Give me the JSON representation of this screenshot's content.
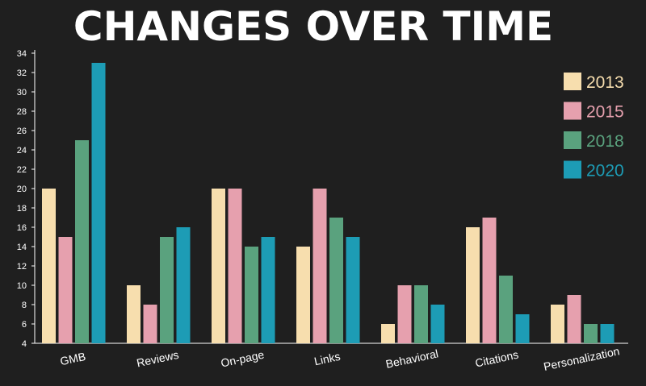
{
  "chart_data": {
    "type": "bar",
    "title": "CHANGES OVER TIME",
    "xlabel": "",
    "ylabel": "",
    "categories": [
      "GMB",
      "Reviews",
      "On-page",
      "Links",
      "Behavioral",
      "Citations",
      "Personalization"
    ],
    "series": [
      {
        "name": "2013",
        "color": "#f7deae",
        "values": [
          20,
          10,
          20,
          14,
          6,
          16,
          8
        ]
      },
      {
        "name": "2015",
        "color": "#e6a0ae",
        "values": [
          15,
          8,
          20,
          20,
          10,
          17,
          9
        ]
      },
      {
        "name": "2018",
        "color": "#5aa27e",
        "values": [
          25,
          15,
          14,
          17,
          10,
          11,
          6
        ]
      },
      {
        "name": "2020",
        "color": "#1d9cb5",
        "values": [
          33,
          16,
          15,
          15,
          8,
          7,
          6
        ]
      }
    ],
    "ylim": [
      4,
      34
    ],
    "yticks": [
      4,
      6,
      8,
      10,
      12,
      14,
      16,
      18,
      20,
      22,
      24,
      26,
      28,
      30,
      32,
      34
    ],
    "grid": false,
    "legend": "top-right",
    "background": "#1f1f1f",
    "axis_color": "#ffffff"
  }
}
